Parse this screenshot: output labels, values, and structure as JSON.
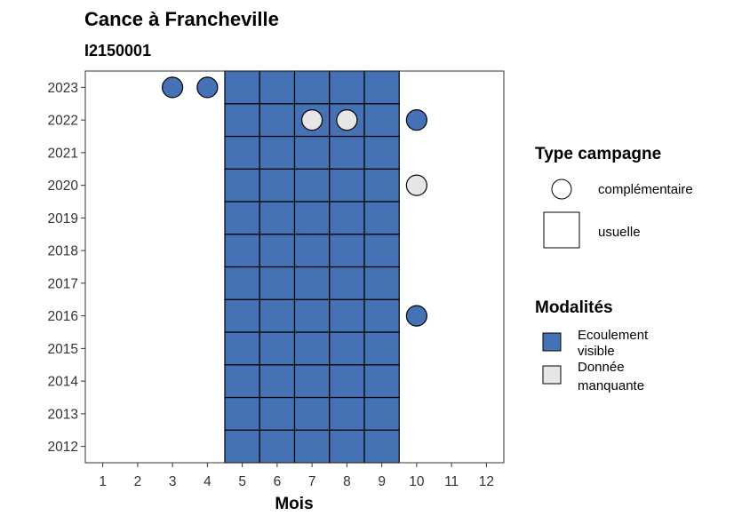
{
  "chart_data": {
    "type": "heatmap",
    "title": "Cance à Francheville",
    "subtitle": "I2150001",
    "xlabel": "Mois",
    "ylabel": "",
    "x_ticks": [
      1,
      2,
      3,
      4,
      5,
      6,
      7,
      8,
      9,
      10,
      11,
      12
    ],
    "y_ticks": [
      2012,
      2013,
      2014,
      2015,
      2016,
      2017,
      2018,
      2019,
      2020,
      2021,
      2022,
      2023
    ],
    "xlim": [
      0.5,
      12.5
    ],
    "ylim": [
      2011.5,
      2023.5
    ],
    "legend_type": {
      "title": "Type campagne",
      "entries": [
        {
          "label": "complémentaire",
          "shape": "circle"
        },
        {
          "label": "usuelle",
          "shape": "square"
        }
      ]
    },
    "legend_modalites": {
      "title": "Modalités",
      "entries": [
        {
          "label_lines": [
            "Ecoulement",
            "visible"
          ],
          "color": "#4472B4"
        },
        {
          "label_lines": [
            "Donnée",
            "manquante"
          ],
          "color": "#E6E6E6"
        }
      ]
    },
    "tiles_usuelle": {
      "months": [
        5,
        6,
        7,
        8,
        9
      ],
      "years": [
        2012,
        2013,
        2014,
        2015,
        2016,
        2017,
        2018,
        2019,
        2020,
        2021,
        2022,
        2023
      ],
      "modalite": "Ecoulement visible"
    },
    "points_complementaire": [
      {
        "month": 3,
        "year": 2023,
        "modalite": "Ecoulement visible"
      },
      {
        "month": 4,
        "year": 2023,
        "modalite": "Ecoulement visible"
      },
      {
        "month": 7,
        "year": 2022,
        "modalite": "Donnée manquante"
      },
      {
        "month": 8,
        "year": 2022,
        "modalite": "Donnée manquante"
      },
      {
        "month": 10,
        "year": 2022,
        "modalite": "Ecoulement visible"
      },
      {
        "month": 10,
        "year": 2020,
        "modalite": "Donnée manquante"
      },
      {
        "month": 10,
        "year": 2016,
        "modalite": "Ecoulement visible"
      }
    ]
  }
}
